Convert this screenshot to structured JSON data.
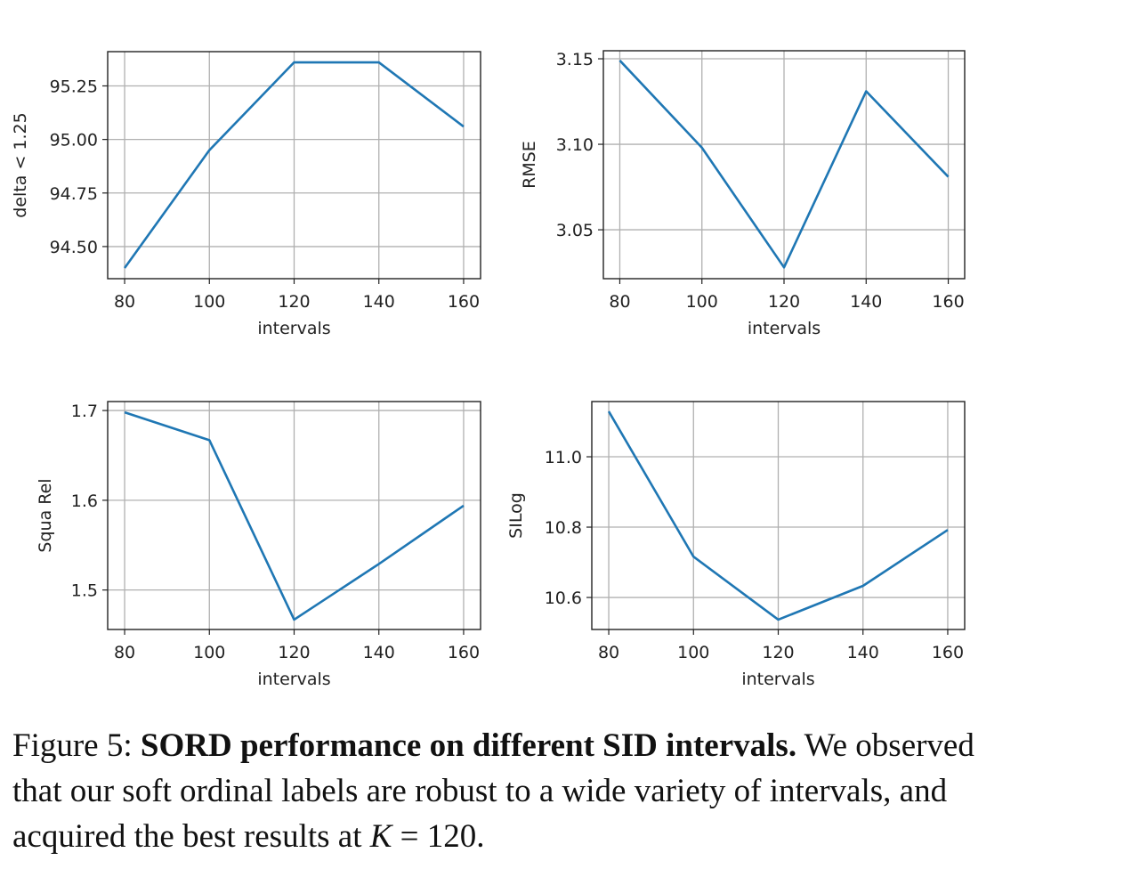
{
  "chart_data": [
    {
      "type": "line",
      "xlabel": "intervals",
      "ylabel": "delta < 1.25",
      "x": [
        80,
        100,
        120,
        140,
        160
      ],
      "values": [
        94.4,
        94.95,
        95.36,
        95.36,
        95.06
      ],
      "xticks": [
        "80",
        "100",
        "120",
        "140",
        "160"
      ],
      "yticks": [
        "94.50",
        "94.75",
        "95.00",
        "95.25"
      ],
      "ylim": [
        94.35,
        95.41
      ],
      "xlim": [
        76,
        164
      ],
      "grid": true,
      "color": "#1f77b4"
    },
    {
      "type": "line",
      "xlabel": "intervals",
      "ylabel": "RMSE",
      "x": [
        80,
        100,
        120,
        140,
        160
      ],
      "values": [
        3.149,
        3.098,
        3.028,
        3.131,
        3.081
      ],
      "xticks": [
        "80",
        "100",
        "120",
        "140",
        "160"
      ],
      "yticks": [
        "3.05",
        "3.10",
        "3.15"
      ],
      "ylim": [
        3.0214,
        3.1547
      ],
      "xlim": [
        76,
        164
      ],
      "grid": true,
      "color": "#1f77b4"
    },
    {
      "type": "line",
      "xlabel": "intervals",
      "ylabel": "Squa Rel",
      "x": [
        80,
        100,
        120,
        140,
        160
      ],
      "values": [
        1.698,
        1.667,
        1.467,
        1.529,
        1.594
      ],
      "xticks": [
        "80",
        "100",
        "120",
        "140",
        "160"
      ],
      "yticks": [
        "1.5",
        "1.6",
        "1.7"
      ],
      "ylim": [
        1.456,
        1.71
      ],
      "xlim": [
        76,
        164
      ],
      "grid": true,
      "color": "#1f77b4"
    },
    {
      "type": "line",
      "xlabel": "intervals",
      "ylabel": "SILog",
      "x": [
        80,
        100,
        120,
        140,
        160
      ],
      "values": [
        11.129,
        10.716,
        10.537,
        10.633,
        10.792
      ],
      "xticks": [
        "80",
        "100",
        "120",
        "140",
        "160"
      ],
      "yticks": [
        "10.6",
        "10.8",
        "11.0"
      ],
      "ylim": [
        10.509,
        11.157
      ],
      "xlim": [
        76,
        164
      ],
      "grid": true,
      "color": "#1f77b4"
    }
  ],
  "caption": {
    "prefix": "Figure 5: ",
    "bold": "SORD performance on different SID intervals.",
    "text": " We observed that our soft ordinal labels are robust to a wide variety of intervals, and acquired the best results at ",
    "math_var": "K",
    "math_rest": " = 120."
  }
}
